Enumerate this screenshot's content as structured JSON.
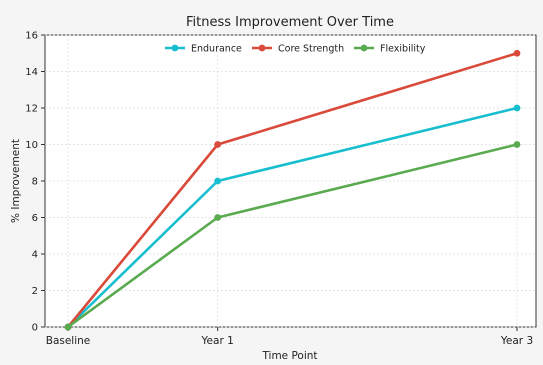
{
  "chart_data": {
    "type": "line",
    "title": "Fitness Improvement Over Time",
    "xlabel": "Time Point",
    "ylabel": "% Improvement",
    "categories": [
      "Baseline",
      "Year 1",
      "Year 3"
    ],
    "x": [
      0,
      1,
      3
    ],
    "ylim": [
      0,
      16
    ],
    "yticks": [
      0,
      2,
      4,
      6,
      8,
      10,
      12,
      14,
      16
    ],
    "grid": true,
    "legend_position": "top-center",
    "series": [
      {
        "name": "Endurance",
        "values": [
          0,
          8,
          12
        ],
        "color": "#17becf"
      },
      {
        "name": "Core Strength",
        "values": [
          0,
          10,
          15
        ],
        "color": "#d94a3a"
      },
      {
        "name": "Flexibility",
        "values": [
          0,
          6,
          10
        ],
        "color": "#5aaa50"
      }
    ]
  }
}
